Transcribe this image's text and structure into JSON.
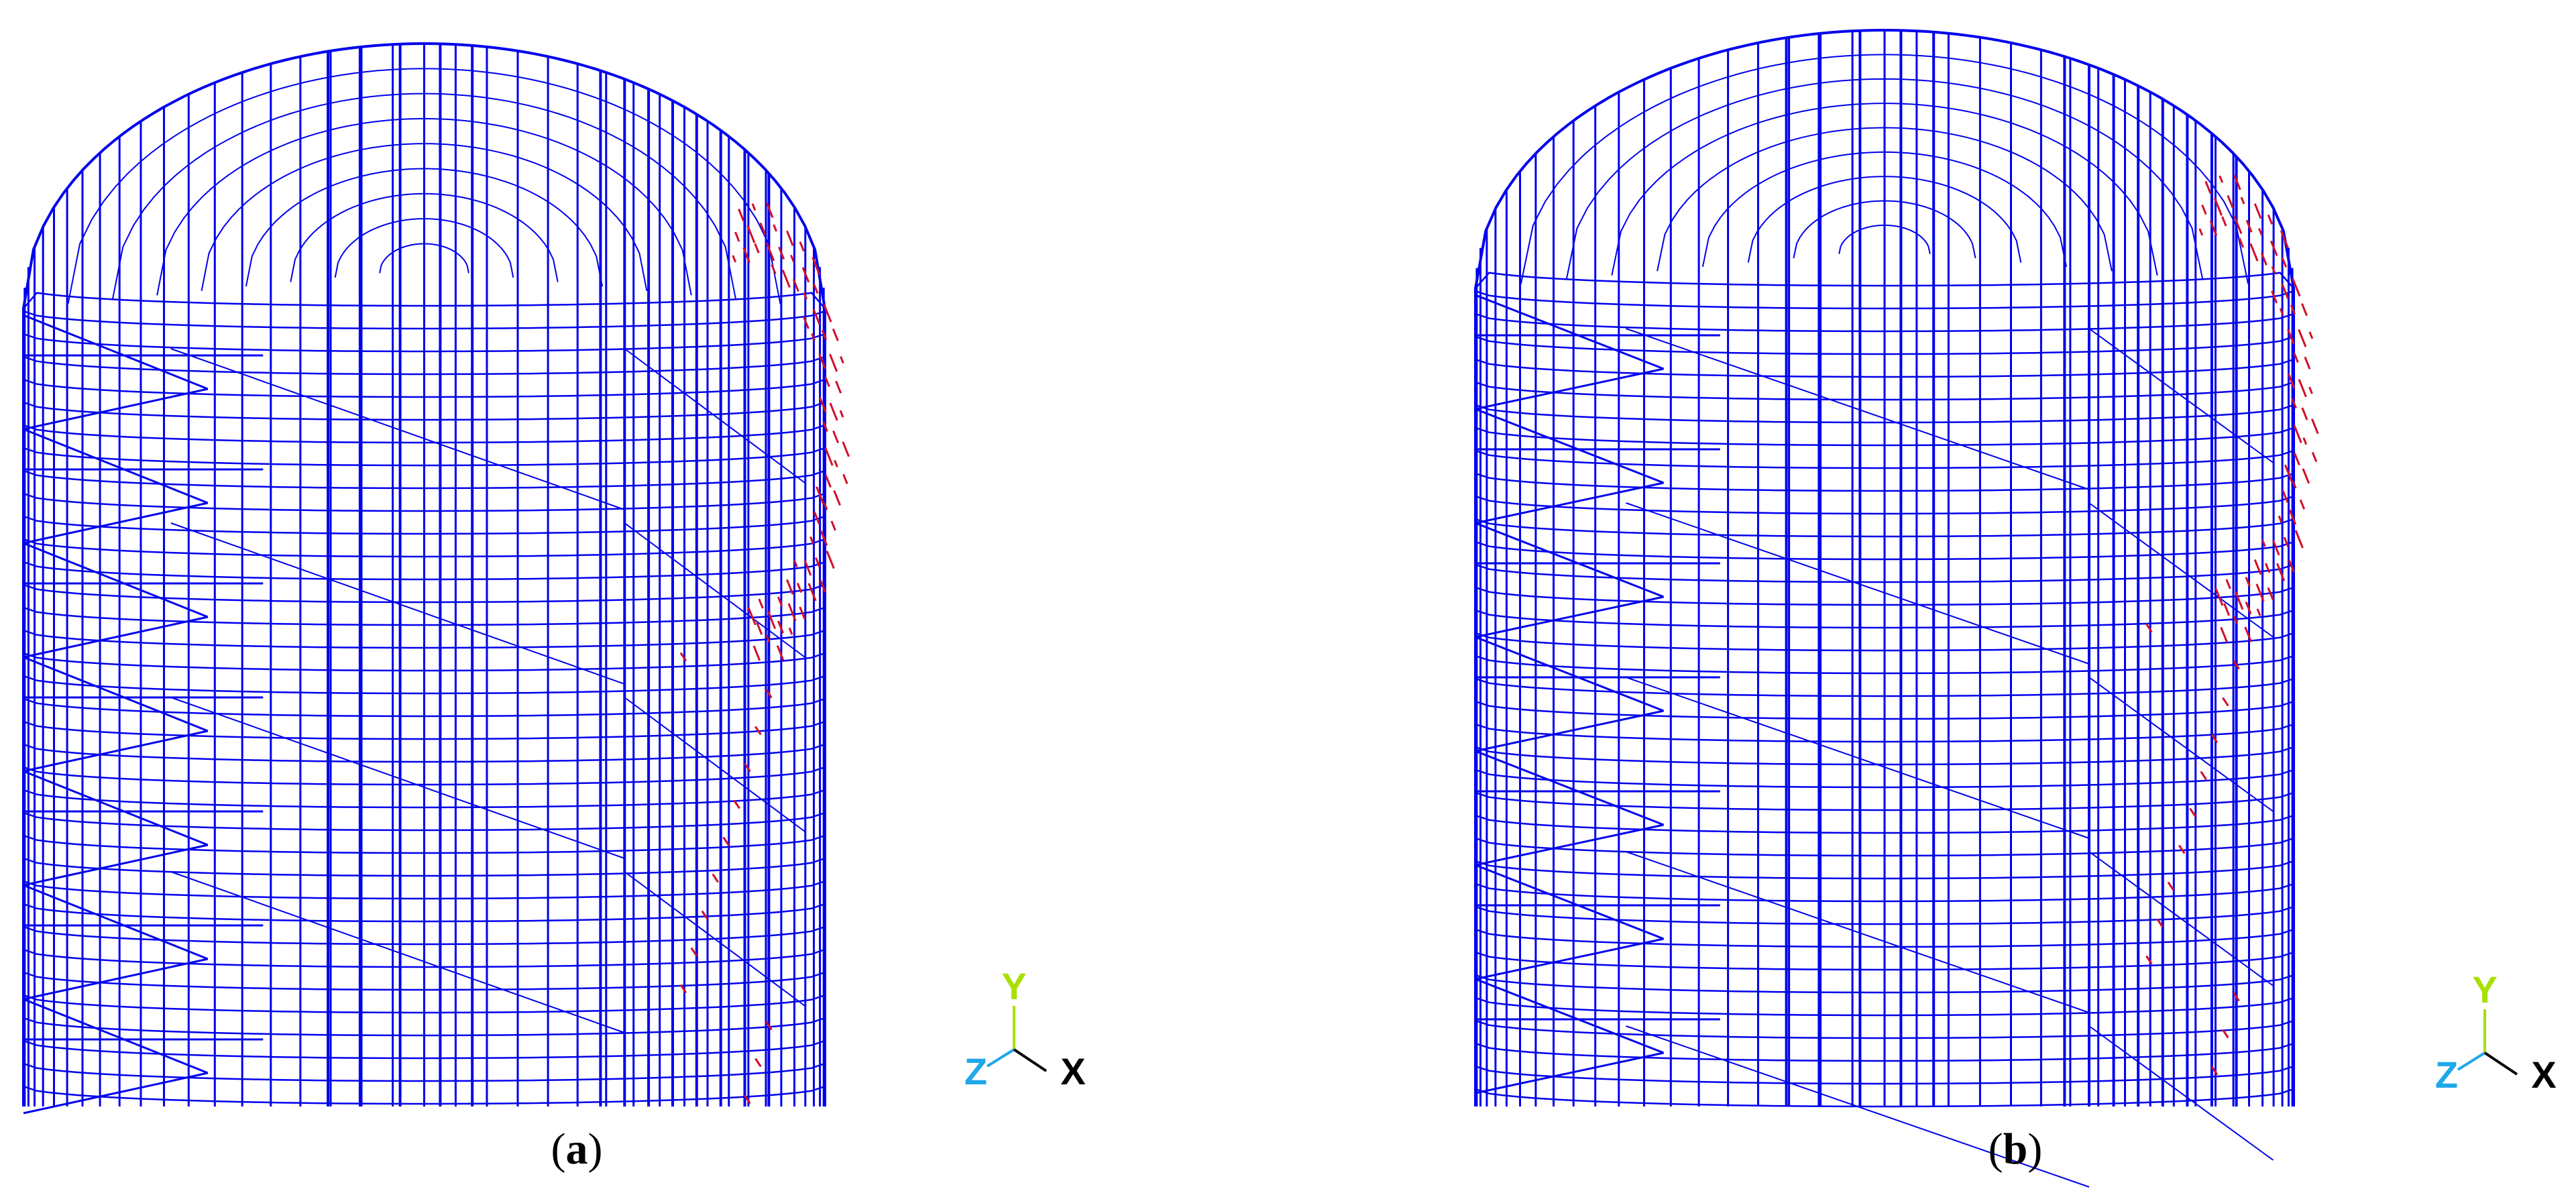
{
  "panels": [
    {
      "id": "a",
      "caption": {
        "open": "(",
        "letter": "a",
        "close": ")"
      },
      "axes": {
        "y": "Y",
        "z": "Z",
        "x": "X"
      }
    },
    {
      "id": "b",
      "caption": {
        "open": "(",
        "letter": "b",
        "close": ")"
      },
      "axes": {
        "y": "Y",
        "z": "Z",
        "x": "X"
      }
    }
  ],
  "colors": {
    "mesh": "#0000ee",
    "mesh_highlight": "#d0102a",
    "axis_y": "#a8e000",
    "axis_z": "#20a8e8",
    "axis_x": "#000000",
    "caption": "#000000",
    "background": "#ffffff"
  }
}
